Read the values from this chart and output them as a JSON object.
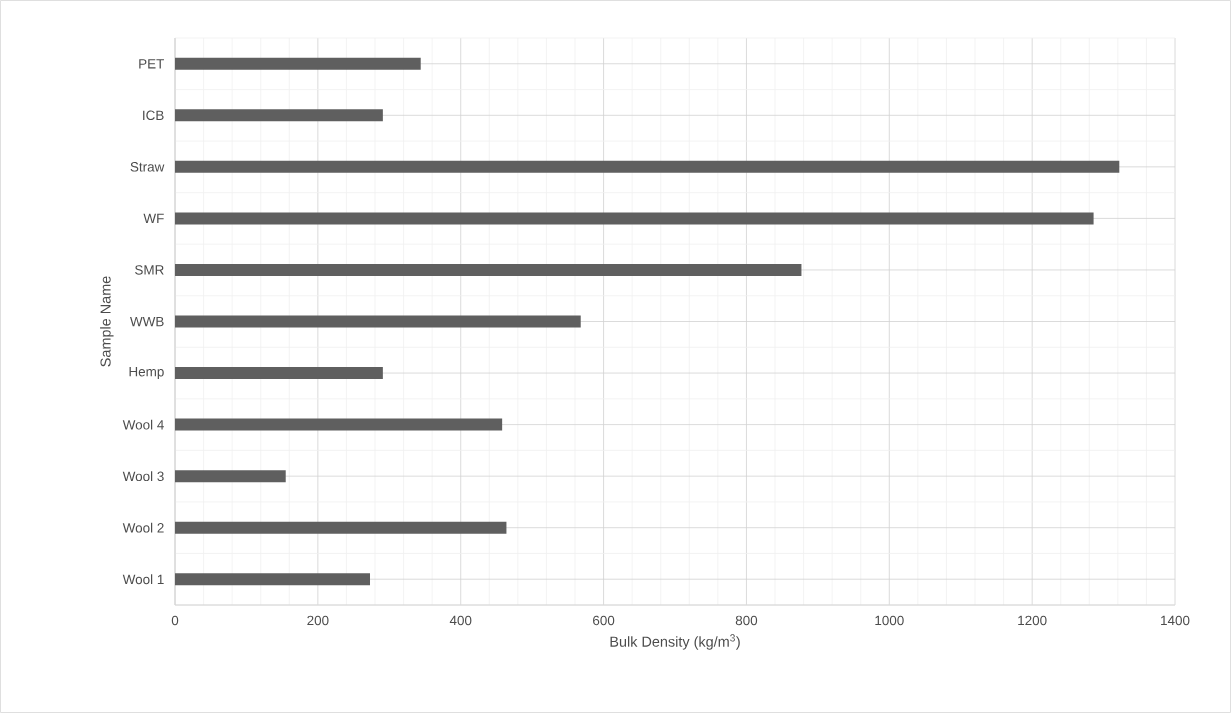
{
  "chart_data": {
    "type": "bar",
    "orientation": "horizontal",
    "xlabel": "Bulk Density (kg/m$^{3}$)",
    "ylabel": "Sample Name",
    "categories": [
      "PET",
      "ICB",
      "Straw",
      "WF",
      "SMR",
      "WWB",
      "Hemp",
      "Wool 4",
      "Wool 3",
      "Wool 2",
      "Wool 1"
    ],
    "values": [
      344,
      291,
      1322,
      1286,
      877,
      568,
      291,
      458,
      155,
      464,
      273
    ],
    "color": "#5f5f5f",
    "xlim": [
      0,
      1400
    ],
    "xticks": [
      0,
      200,
      400,
      600,
      800,
      1000,
      1200,
      1400
    ],
    "grid": true
  }
}
